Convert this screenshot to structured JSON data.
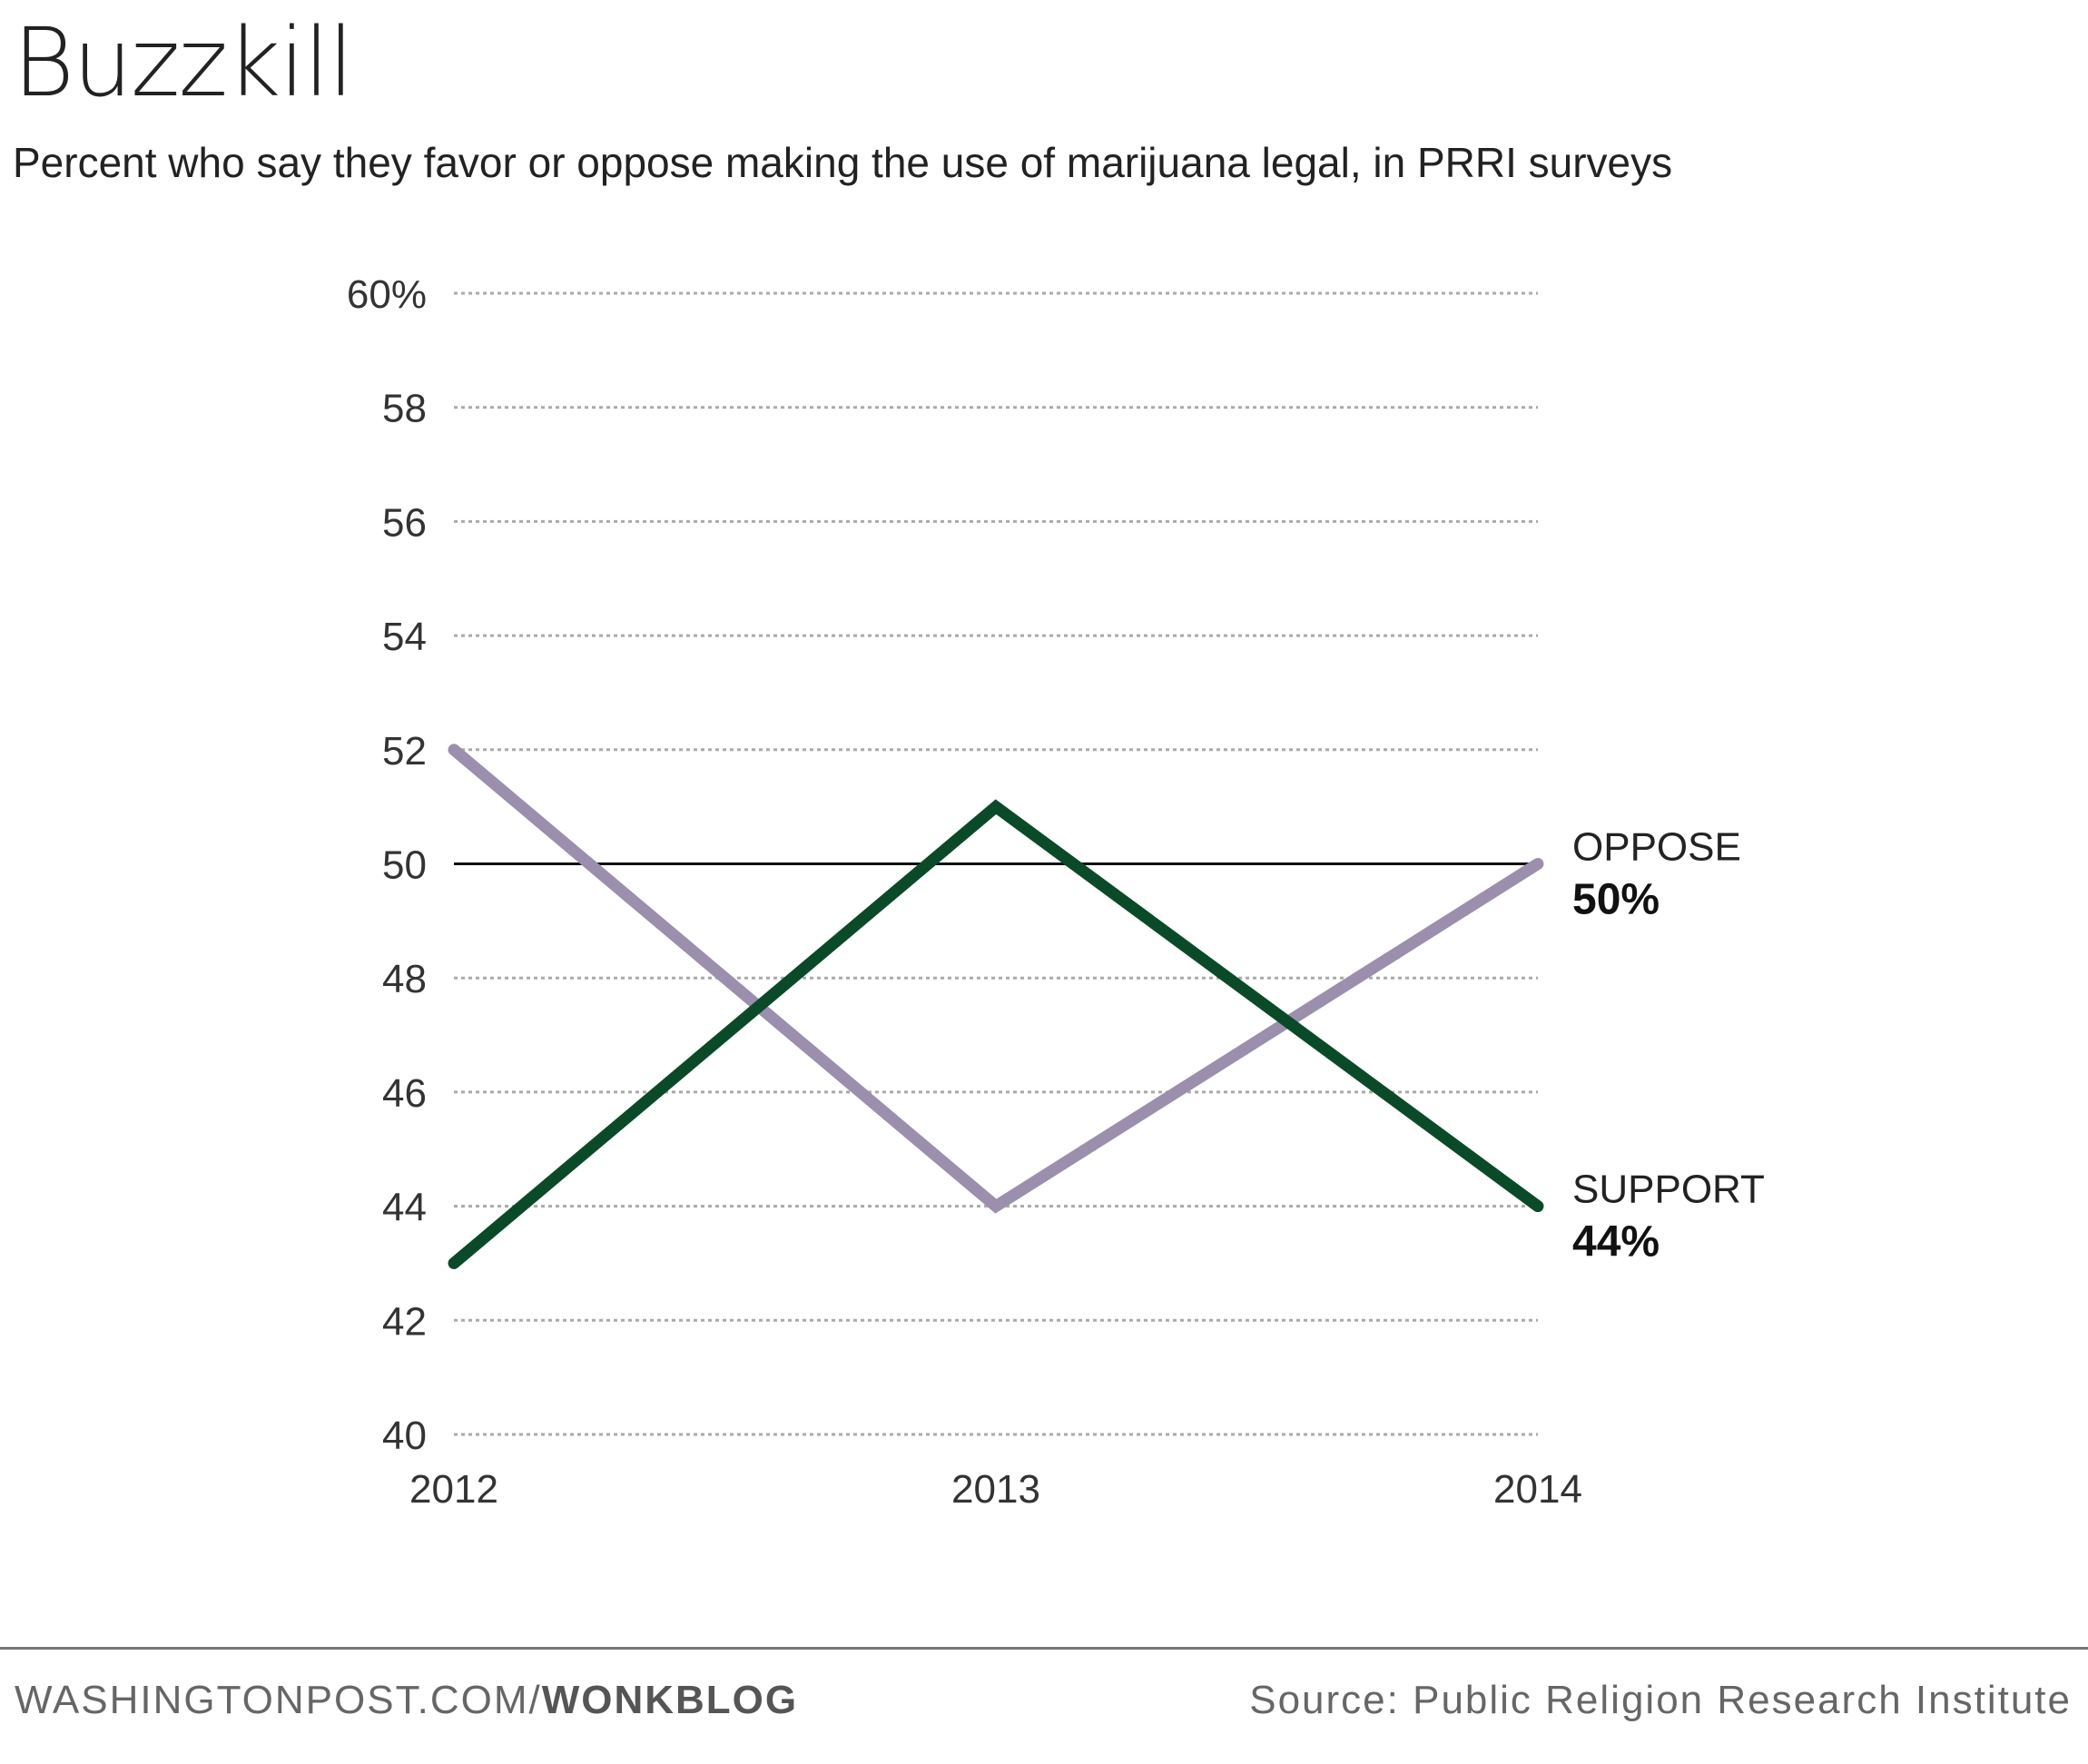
{
  "title": "Buzzkill",
  "subtitle": "Percent who say they favor or oppose making the use of marijuana legal, in PRRI surveys",
  "chart_data": {
    "type": "line",
    "x": [
      2012,
      2013,
      2014
    ],
    "x_tick_labels": [
      "2012",
      "2013",
      "2014"
    ],
    "ylim": [
      40,
      60
    ],
    "y_ticks": [
      40,
      42,
      44,
      46,
      48,
      50,
      52,
      54,
      56,
      58,
      60
    ],
    "y_tick_labels": [
      "40",
      "42",
      "44",
      "46",
      "48",
      "50",
      "52",
      "54",
      "56",
      "58",
      "60%"
    ],
    "reference_line": 50,
    "grid": "horizontal dotted",
    "series": [
      {
        "name": "OPPOSE",
        "values": [
          52,
          44,
          50
        ],
        "end_label": "50%",
        "color": "#9b8fad"
      },
      {
        "name": "SUPPORT",
        "values": [
          43,
          51,
          44
        ],
        "end_label": "44%",
        "color": "#0a4a28"
      }
    ]
  },
  "footer": {
    "site": "WASHINGTONPOST.COM/",
    "section": "WONKBLOG",
    "source": "Source: Public Religion Research Institute"
  }
}
